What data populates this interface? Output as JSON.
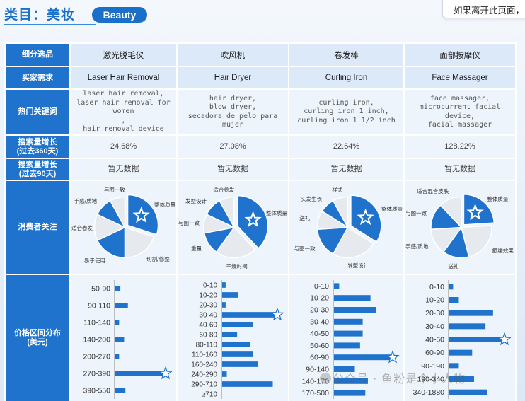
{
  "header": {
    "category_title": "类目：美妆",
    "badge": "Beauty",
    "popup_text": "如果离开此页面，"
  },
  "table": {
    "row_headers": {
      "segment": "细分选品",
      "buyer_need": "买家需求",
      "keywords": "热门关键词",
      "growth_360": "搜索量增长\n(过去360天)",
      "growth_90": "搜索量增长\n(过去90天)",
      "concerns": "消费者关注",
      "price": "价格区间分布\n(美元)"
    },
    "columns": [
      {
        "segment": "激光脱毛仪",
        "buyer_need": "Laser Hair Removal",
        "keywords": "laser hair removal,\nlaser hair removal for women\n,\nhair removal device",
        "growth_360": "24.68%",
        "growth_90": "暂无数据"
      },
      {
        "segment": "吹风机",
        "buyer_need": "Hair Dryer",
        "keywords": "hair dryer,\nblow dryer,\nsecadora de pelo para mujer",
        "growth_360": "27.08%",
        "growth_90": "暂无数据"
      },
      {
        "segment": "卷发棒",
        "buyer_need": "Curling Iron",
        "keywords": "curling iron,\ncurling iron 1 inch,\ncurling iron 1 1/2 inch",
        "growth_360": "22.64%",
        "growth_90": "暂无数据"
      },
      {
        "segment": "面部按摩仪",
        "buyer_need": "Face Massager",
        "keywords": "face massager,\nmicrocurrent facial device,\nfacial massager",
        "growth_360": "128.22%",
        "growth_90": "暂无数据"
      }
    ]
  },
  "colors": {
    "primary_blue": "#1f73cc",
    "light_blue": "#dce9f8",
    "pie_light": "#e6e9ee"
  },
  "chart_data": [
    {
      "type": "pie",
      "name_ref": "激光脱毛仪",
      "labels": [
        "整体质量",
        "切割/修整",
        "易于使用",
        "适合卷发",
        "手感/质地",
        "与图一致"
      ],
      "values": [
        30,
        20,
        18,
        14,
        10,
        8
      ],
      "highlight": "整体质量",
      "star": true
    },
    {
      "type": "pie",
      "name_ref": "吹风机",
      "labels": [
        "整体质量",
        "干燥时间",
        "重量",
        "与图一致",
        "发型设计",
        "适合卷发"
      ],
      "values": [
        38,
        22,
        12,
        10,
        10,
        8
      ],
      "highlight": "整体质量",
      "star": true
    },
    {
      "type": "pie",
      "name_ref": "卷发棒",
      "labels": [
        "整体质量",
        "发型设计",
        "与图一致",
        "送礼",
        "头发生长",
        "样式"
      ],
      "values": [
        34,
        24,
        16,
        10,
        8,
        8
      ],
      "highlight": "整体质量",
      "star": true
    },
    {
      "type": "pie",
      "name_ref": "面部按摩仪",
      "labels": [
        "整体质量",
        "舒缓效果",
        "送礼",
        "手感/质地",
        "与图一致",
        "适合混合皮肤"
      ],
      "values": [
        24,
        22,
        14,
        14,
        14,
        12
      ],
      "highlight": "整体质量",
      "star": true
    },
    {
      "type": "bar",
      "orientation": "horizontal",
      "name_ref": "激光脱毛仪",
      "categories": [
        "50-90",
        "90-110",
        "110-140",
        "140-200",
        "200-270",
        "270-390",
        "390-550"
      ],
      "values": [
        4,
        10,
        3,
        7,
        3,
        40,
        8
      ],
      "star_index": 5
    },
    {
      "type": "bar",
      "orientation": "horizontal",
      "name_ref": "吹风机",
      "categories": [
        "0-10",
        "10-20",
        "20-30",
        "30-40",
        "40-60",
        "60-80",
        "80-110",
        "110-160",
        "160-240",
        "240-290",
        "290-710",
        "≥710"
      ],
      "values": [
        3,
        14,
        3,
        48,
        27,
        13,
        24,
        27,
        31,
        4,
        44,
        0
      ],
      "star_index": 3
    },
    {
      "type": "bar",
      "orientation": "horizontal",
      "name_ref": "卷发棒",
      "categories": [
        "0-10",
        "10-20",
        "20-30",
        "30-40",
        "40-50",
        "50-60",
        "60-90",
        "90-140",
        "140-170",
        "170-500"
      ],
      "values": [
        4,
        28,
        32,
        22,
        22,
        20,
        45,
        16,
        26,
        24
      ],
      "star_index": 6
    },
    {
      "type": "bar",
      "orientation": "horizontal",
      "name_ref": "面部按摩仪",
      "categories": [
        "0-10",
        "10-20",
        "20-30",
        "30-40",
        "40-60",
        "60-90",
        "90-190",
        "190-340",
        "340-1880"
      ],
      "values": [
        4,
        10,
        46,
        38,
        58,
        24,
        10,
        26,
        40
      ],
      "star_index": 4
    }
  ],
  "watermark": "公众号 · 鱼粉是个小人物"
}
